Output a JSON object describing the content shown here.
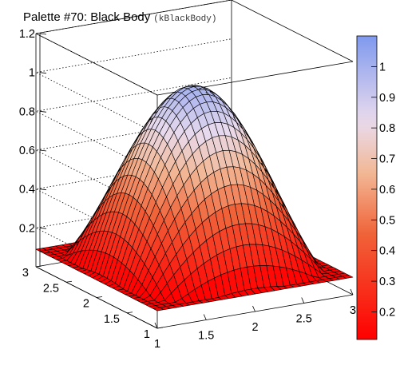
{
  "title": "Palette #70: Black Body",
  "subtitle": "(kBlackBody)",
  "chart_data": {
    "type": "surface",
    "function": "sin(pi*(x-1)/2) * sin(pi*(y-1)/2)",
    "x_range": [
      1,
      3
    ],
    "y_range": [
      1,
      3
    ],
    "z_range": [
      0,
      1.2
    ],
    "x_ticks": [
      "1",
      "1.5",
      "2",
      "2.5",
      "3"
    ],
    "y_ticks": [
      "1",
      "1.5",
      "2",
      "2.5",
      "3"
    ],
    "z_ticks": [
      "0.2",
      "0.4",
      "0.6",
      "0.8",
      "1",
      "1.2"
    ],
    "palette_name": "kBlackBody",
    "palette_stops": [
      {
        "value": 0.0,
        "color": "#ff0000"
      },
      {
        "value": 0.35,
        "color": "#f0643a"
      },
      {
        "value": 0.55,
        "color": "#f2b896"
      },
      {
        "value": 0.72,
        "color": "#e9dbee"
      },
      {
        "value": 1.0,
        "color": "#7f99ee"
      }
    ],
    "colorbar_ticks": [
      "0.2",
      "0.3",
      "0.4",
      "0.5",
      "0.6",
      "0.7",
      "0.8",
      "0.9",
      "1"
    ],
    "colorbar_range": [
      0.11,
      1.1
    ],
    "grid": true,
    "mesh": true
  }
}
